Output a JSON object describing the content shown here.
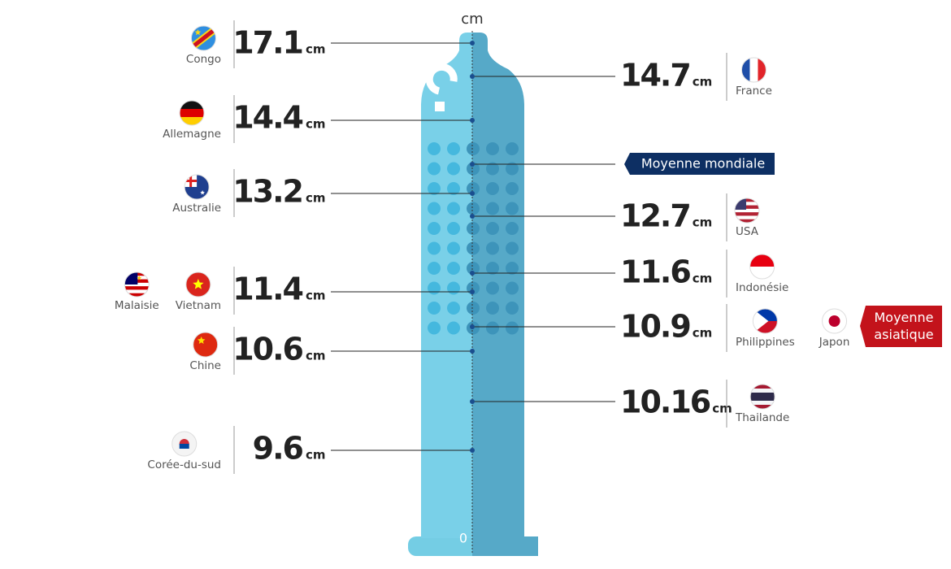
{
  "unit": "cm",
  "zero_label": "0",
  "left": [
    {
      "value": 17.1,
      "countries": [
        "Congo"
      ]
    },
    {
      "value": 14.4,
      "countries": [
        "Allemagne"
      ]
    },
    {
      "value": 13.2,
      "countries": [
        "Australie"
      ]
    },
    {
      "value": 11.4,
      "countries": [
        "Malaisie",
        "Vietnam"
      ]
    },
    {
      "value": 10.6,
      "countries": [
        "Chine"
      ]
    },
    {
      "value": 9.6,
      "countries": [
        "Corée-du-sud"
      ]
    }
  ],
  "right": [
    {
      "value": 14.7,
      "countries": [
        "France"
      ]
    },
    {
      "value": 12.7,
      "countries": [
        "USA"
      ]
    },
    {
      "value": 11.6,
      "countries": [
        "Indonésie"
      ]
    },
    {
      "value": 10.9,
      "countries": [
        "Philippines",
        "Japon"
      ]
    },
    {
      "value": 10.16,
      "countries": [
        "Thailande"
      ]
    }
  ],
  "world_average": "Moyenne mondiale",
  "asian_average": "Moyenne asiatique"
}
